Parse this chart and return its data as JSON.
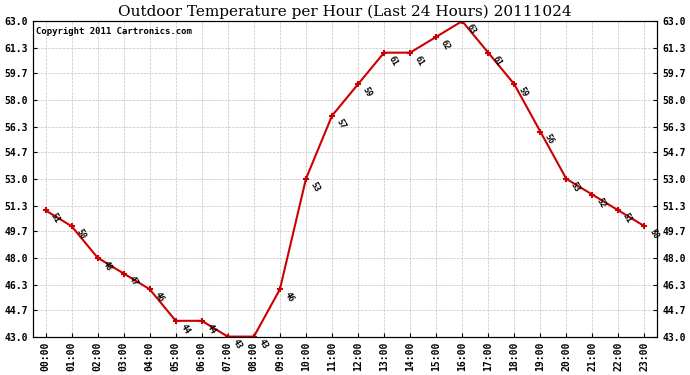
{
  "title": "Outdoor Temperature per Hour (Last 24 Hours) 20111024",
  "copyright": "Copyright 2011 Cartronics.com",
  "hours": [
    "00:00",
    "01:00",
    "02:00",
    "03:00",
    "04:00",
    "05:00",
    "06:00",
    "07:00",
    "08:00",
    "09:00",
    "10:00",
    "11:00",
    "12:00",
    "13:00",
    "14:00",
    "15:00",
    "16:00",
    "17:00",
    "18:00",
    "19:00",
    "20:00",
    "21:00",
    "22:00",
    "23:00"
  ],
  "temps": [
    51,
    50,
    48,
    47,
    46,
    44,
    44,
    43,
    43,
    46,
    53,
    57,
    59,
    61,
    61,
    62,
    63,
    61,
    59,
    56,
    53,
    52,
    51,
    50
  ],
  "y_ticks": [
    43.0,
    44.7,
    46.3,
    48.0,
    49.7,
    51.3,
    53.0,
    54.7,
    56.3,
    58.0,
    59.7,
    61.3,
    63.0
  ],
  "ylim": [
    43.0,
    63.0
  ],
  "line_color": "#cc0000",
  "marker_color": "#cc0000",
  "grid_color": "#bbbbbb",
  "bg_color": "#ffffff",
  "title_fontsize": 11,
  "copyright_fontsize": 6.5,
  "label_fontsize": 6,
  "tick_fontsize": 7
}
